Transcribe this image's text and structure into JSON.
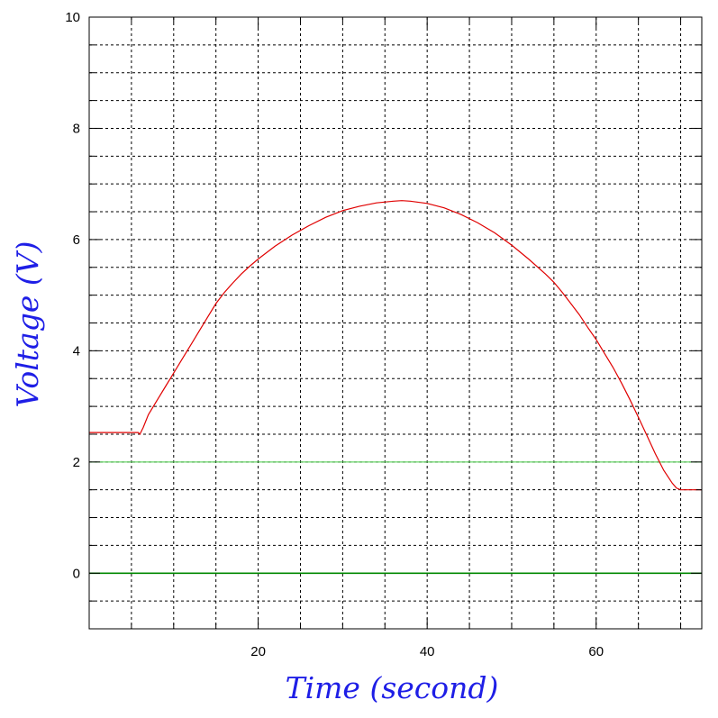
{
  "chart_data": {
    "type": "line",
    "title": "",
    "xlabel": "Time (second)",
    "ylabel": "Voltage (V)",
    "xlim": [
      0,
      72.5
    ],
    "ylim": [
      -1,
      10
    ],
    "x_ticks": [
      20,
      40,
      60
    ],
    "x_minor_grid_step": 5,
    "y_ticks": [
      0,
      2,
      4,
      6,
      8,
      10
    ],
    "y_minor_grid_step": 0.5,
    "grid": true,
    "grid_style": "dotted",
    "colors": {
      "voltage_series": "#e00000",
      "reference_lines": "#22bb22",
      "axis_titles": "#1e1ee6"
    },
    "reference_lines": [
      {
        "y": 2,
        "color": "#44cc44"
      },
      {
        "y": 0,
        "color": "#008800"
      }
    ],
    "series": [
      {
        "x": [
          0,
          2,
          4,
          5.8,
          6,
          6.4,
          7,
          8,
          9,
          10,
          11,
          12,
          13,
          14,
          15,
          16,
          17,
          18,
          19,
          20,
          22,
          24,
          26,
          28,
          30,
          32,
          34,
          36,
          37,
          38,
          40,
          42,
          44,
          46,
          48,
          50,
          52,
          54,
          55,
          56,
          57,
          58,
          59,
          60,
          61,
          62,
          63,
          64,
          65,
          66,
          67,
          68,
          69,
          69.5,
          70,
          71,
          72.5
        ],
        "y": [
          2.53,
          2.53,
          2.53,
          2.53,
          2.5,
          2.62,
          2.85,
          3.1,
          3.35,
          3.6,
          3.85,
          4.1,
          4.35,
          4.6,
          4.85,
          5.05,
          5.22,
          5.38,
          5.52,
          5.65,
          5.88,
          6.08,
          6.25,
          6.4,
          6.52,
          6.6,
          6.66,
          6.69,
          6.7,
          6.69,
          6.65,
          6.57,
          6.45,
          6.3,
          6.12,
          5.9,
          5.65,
          5.38,
          5.23,
          5.05,
          4.85,
          4.65,
          4.42,
          4.2,
          3.95,
          3.7,
          3.42,
          3.12,
          2.8,
          2.48,
          2.15,
          1.85,
          1.62,
          1.53,
          1.5,
          1.5,
          1.5
        ]
      }
    ]
  }
}
